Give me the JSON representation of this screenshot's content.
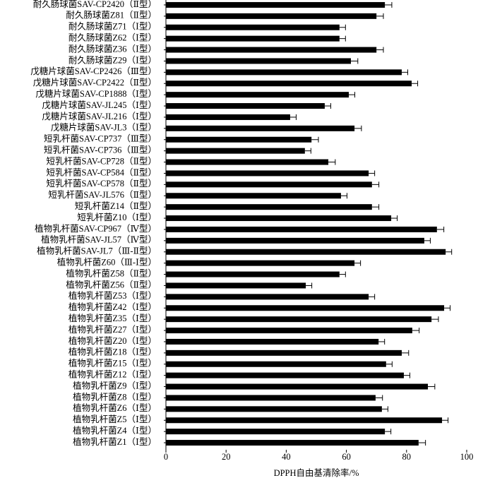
{
  "chart_data": {
    "type": "bar",
    "orientation": "horizontal",
    "xlabel": "DPPH自由基清除率/%",
    "categories": [
      "耐久肠球菌SAV-CP2420（Ⅱ型）",
      "耐久肠球菌Z81（Ⅱ型）",
      "耐久肠球菌Z71（Ⅰ型）",
      "耐久肠球菌Z62（Ⅰ型）",
      "耐久肠球菌Z36（Ⅰ型）",
      "耐久肠球菌Z29（Ⅰ型）",
      "戊糖片球菌SAV-CP2426（Ⅲ型）",
      "戊糖片球菌SAV-CP2422（Ⅱ型）",
      "戊糖片球菌SAV-CP1888（Ⅰ型）",
      "戊糖片球菌SAV-JL245（Ⅰ型）",
      "戊糖片球菌SAV-JL216（Ⅰ型）",
      "戊糖片球菌SAV-JL3（Ⅰ型）",
      "短乳杆菌SAV-CP737（Ⅲ型）",
      "短乳杆菌SAV-CP736（Ⅲ型）",
      "短乳杆菌SAV-CP728（Ⅱ型）",
      "短乳杆菌SAV-CP584（Ⅱ型）",
      "短乳杆菌SAV-CP578（Ⅱ型）",
      "短乳杆菌SAV-JL576（Ⅱ型）",
      "短乳杆菌Z14（Ⅱ型）",
      "短乳杆菌Z10（Ⅰ型）",
      "植物乳杆菌SAV-CP967（Ⅳ型）",
      "植物乳杆菌SAV-JL57（Ⅳ型）",
      "植物乳杆菌SAV-JL7（Ⅲ-Ⅱ型）",
      "植物乳杆菌Z60（Ⅲ-Ⅰ型）",
      "植物乳杆菌Z58（Ⅱ型）",
      "植物乳杆菌Z56（Ⅱ型）",
      "植物乳杆菌Z53（Ⅰ型）",
      "植物乳杆菌Z42（Ⅰ型）",
      "植物乳杆菌Z35（Ⅰ型）",
      "植物乳杆菌Z27（Ⅰ型）",
      "植物乳杆菌Z20（Ⅰ型）",
      "植物乳杆菌Z18（Ⅰ型）",
      "植物乳杆菌Z15（Ⅰ型）",
      "植物乳杆菌Z12（Ⅰ型）",
      "植物乳杆菌Z9（Ⅰ型）",
      "植物乳杆菌Z8（Ⅰ型）",
      "植物乳杆菌Z6（Ⅰ型）",
      "植物乳杆菌Z5（Ⅰ型）",
      "植物乳杆菌Z4（Ⅰ型）",
      "植物乳杆菌Z1（Ⅰ型）"
    ],
    "values": [
      72.8,
      70,
      57.7,
      57.7,
      70,
      61.5,
      78.4,
      81.7,
      60.8,
      52.8,
      41.3,
      62.7,
      48.4,
      46.2,
      54,
      67.4,
      68.5,
      58.2,
      68.5,
      74.9,
      90.1,
      85.9,
      93,
      62.7,
      57.7,
      46.5,
      67.4,
      92.5,
      88.3,
      81.9,
      70.7,
      78.4,
      73.2,
      79.1,
      87.1,
      69.7,
      71.8,
      91.8,
      72.8,
      84
    ],
    "errors": [
      2.3,
      2.3,
      2,
      2,
      2.3,
      2.3,
      2,
      2,
      2,
      2,
      2,
      2.3,
      2.3,
      2,
      2.3,
      2,
      2.3,
      2,
      2.3,
      2,
      2.3,
      2,
      2,
      2,
      2,
      2,
      2,
      2,
      2.3,
      2.3,
      2,
      2.3,
      2,
      2,
      2.3,
      2.3,
      2,
      2,
      2,
      2.3
    ],
    "color": "#000000",
    "xlim": [
      0,
      100
    ],
    "xticks": [
      0,
      20,
      40,
      60,
      80,
      100
    ]
  }
}
